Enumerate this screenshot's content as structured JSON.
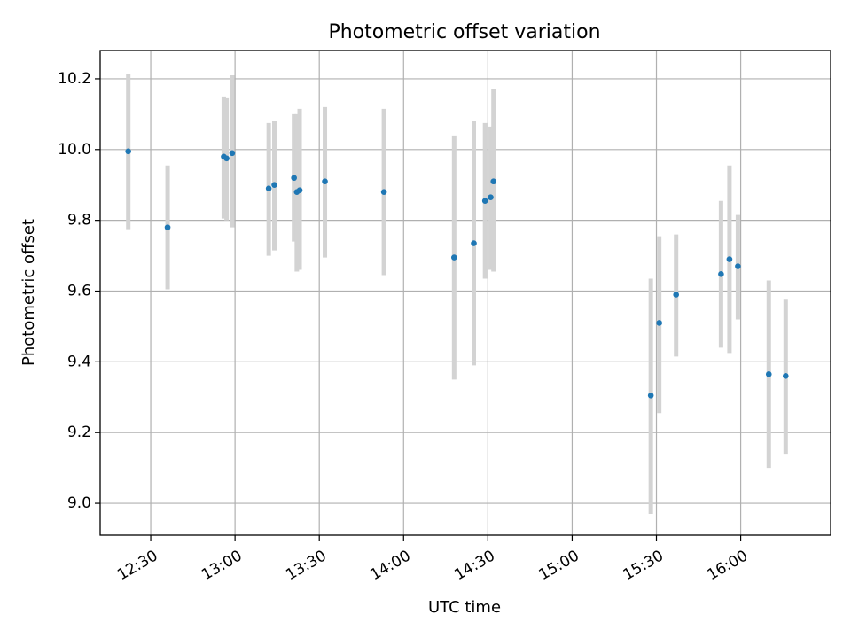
{
  "chart_data": {
    "type": "scatter",
    "title": "Photometric offset variation",
    "xlabel": "UTC time",
    "ylabel": "Photometric offset",
    "x_axis_kind": "time",
    "xlim": [
      "12:12",
      "16:32"
    ],
    "ylim": [
      8.91,
      10.28
    ],
    "x_ticks": [
      "12:30",
      "13:00",
      "13:30",
      "14:00",
      "14:30",
      "15:00",
      "15:30",
      "16:00"
    ],
    "y_ticks": [
      "9.0",
      "9.2",
      "9.4",
      "9.6",
      "9.8",
      "10.0",
      "10.2"
    ],
    "grid": true,
    "point_color": "#1f77b4",
    "errorbar_color": "#d3d3d3",
    "points": [
      {
        "x": "12:22",
        "y": 9.995,
        "ylow": 9.775,
        "yhigh": 10.215
      },
      {
        "x": "12:36",
        "y": 9.78,
        "ylow": 9.605,
        "yhigh": 9.955
      },
      {
        "x": "12:56",
        "y": 9.98,
        "ylow": 9.805,
        "yhigh": 10.15
      },
      {
        "x": "12:57",
        "y": 9.975,
        "ylow": 9.8,
        "yhigh": 10.145
      },
      {
        "x": "12:59",
        "y": 9.99,
        "ylow": 9.78,
        "yhigh": 10.21
      },
      {
        "x": "13:12",
        "y": 9.89,
        "ylow": 9.7,
        "yhigh": 10.075
      },
      {
        "x": "13:14",
        "y": 9.9,
        "ylow": 9.715,
        "yhigh": 10.08
      },
      {
        "x": "13:21",
        "y": 9.92,
        "ylow": 9.74,
        "yhigh": 10.1
      },
      {
        "x": "13:22",
        "y": 9.88,
        "ylow": 9.655,
        "yhigh": 10.1
      },
      {
        "x": "13:23",
        "y": 9.885,
        "ylow": 9.66,
        "yhigh": 10.115
      },
      {
        "x": "13:32",
        "y": 9.91,
        "ylow": 9.695,
        "yhigh": 10.12
      },
      {
        "x": "13:53",
        "y": 9.88,
        "ylow": 9.645,
        "yhigh": 10.115
      },
      {
        "x": "14:18",
        "y": 9.695,
        "ylow": 9.35,
        "yhigh": 10.04
      },
      {
        "x": "14:25",
        "y": 9.735,
        "ylow": 9.39,
        "yhigh": 10.08
      },
      {
        "x": "14:29",
        "y": 9.855,
        "ylow": 9.635,
        "yhigh": 10.075
      },
      {
        "x": "14:31",
        "y": 9.865,
        "ylow": 9.66,
        "yhigh": 10.065
      },
      {
        "x": "14:32",
        "y": 9.91,
        "ylow": 9.655,
        "yhigh": 10.17
      },
      {
        "x": "15:28",
        "y": 9.305,
        "ylow": 8.97,
        "yhigh": 9.635
      },
      {
        "x": "15:31",
        "y": 9.51,
        "ylow": 9.255,
        "yhigh": 9.755
      },
      {
        "x": "15:37",
        "y": 9.59,
        "ylow": 9.415,
        "yhigh": 9.76
      },
      {
        "x": "15:53",
        "y": 9.648,
        "ylow": 9.44,
        "yhigh": 9.855
      },
      {
        "x": "15:56",
        "y": 9.69,
        "ylow": 9.425,
        "yhigh": 9.955
      },
      {
        "x": "15:59",
        "y": 9.67,
        "ylow": 9.52,
        "yhigh": 9.815
      },
      {
        "x": "16:10",
        "y": 9.365,
        "ylow": 9.1,
        "yhigh": 9.63
      },
      {
        "x": "16:16",
        "y": 9.36,
        "ylow": 9.14,
        "yhigh": 9.578
      }
    ]
  }
}
